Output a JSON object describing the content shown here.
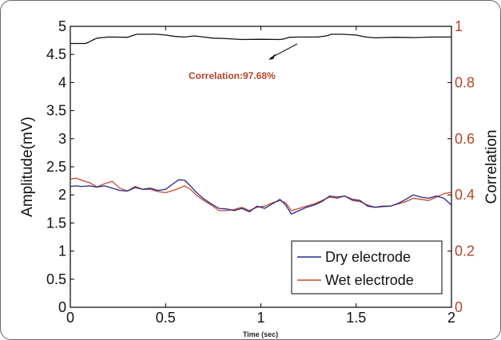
{
  "chart_data": {
    "type": "line",
    "title": "",
    "xlabel": "Time (sec)",
    "ylabel": "Amplitude(mV)",
    "y2label": "Correlation",
    "xlim": [
      0,
      2
    ],
    "ylim": [
      0,
      5
    ],
    "y2lim": [
      0,
      1
    ],
    "xticks": [
      "0",
      "0.5",
      "1",
      "1.5",
      "2"
    ],
    "yticks": [
      "0",
      "0.5",
      "1",
      "1.5",
      "2",
      "2.5",
      "3",
      "3.5",
      "4",
      "4.5",
      "5"
    ],
    "y2ticks": [
      "0",
      "0.2",
      "0.4",
      "0.6",
      "0.8",
      "1"
    ],
    "grid": false,
    "legend_position": "bottom-right",
    "annotation": "Correlation:97.68%",
    "colors": {
      "dry": "#1f2a8a",
      "wet": "#c8462a",
      "correlation": "#111111",
      "right_axis": "#b5452a"
    },
    "series": [
      {
        "name": "Dry electrode",
        "axis": "left",
        "x": [
          0,
          0.03,
          0.06,
          0.1,
          0.14,
          0.18,
          0.22,
          0.26,
          0.3,
          0.34,
          0.38,
          0.42,
          0.46,
          0.5,
          0.54,
          0.57,
          0.6,
          0.63,
          0.66,
          0.7,
          0.74,
          0.78,
          0.82,
          0.86,
          0.9,
          0.94,
          0.98,
          1.02,
          1.06,
          1.1,
          1.13,
          1.16,
          1.2,
          1.24,
          1.28,
          1.32,
          1.36,
          1.4,
          1.44,
          1.48,
          1.52,
          1.56,
          1.6,
          1.64,
          1.68,
          1.72,
          1.76,
          1.8,
          1.84,
          1.88,
          1.92,
          1.96,
          2
        ],
        "y": [
          2.15,
          2.16,
          2.15,
          2.16,
          2.14,
          2.16,
          2.12,
          2.08,
          2.07,
          2.13,
          2.1,
          2.12,
          2.08,
          2.1,
          2.2,
          2.27,
          2.26,
          2.16,
          2.05,
          1.93,
          1.84,
          1.76,
          1.75,
          1.72,
          1.76,
          1.7,
          1.8,
          1.76,
          1.84,
          1.92,
          1.82,
          1.66,
          1.72,
          1.78,
          1.82,
          1.88,
          1.98,
          1.96,
          1.98,
          1.92,
          1.9,
          1.8,
          1.78,
          1.8,
          1.8,
          1.85,
          1.92,
          2.0,
          1.96,
          1.94,
          1.98,
          1.94,
          1.82
        ]
      },
      {
        "name": "Wet electrode",
        "axis": "left",
        "x": [
          0,
          0.03,
          0.06,
          0.1,
          0.14,
          0.18,
          0.22,
          0.26,
          0.3,
          0.34,
          0.38,
          0.42,
          0.46,
          0.5,
          0.54,
          0.57,
          0.6,
          0.63,
          0.66,
          0.7,
          0.74,
          0.78,
          0.82,
          0.86,
          0.9,
          0.94,
          0.98,
          1.02,
          1.06,
          1.1,
          1.13,
          1.16,
          1.2,
          1.24,
          1.28,
          1.32,
          1.36,
          1.4,
          1.44,
          1.48,
          1.52,
          1.56,
          1.6,
          1.64,
          1.68,
          1.72,
          1.76,
          1.8,
          1.84,
          1.88,
          1.92,
          1.96,
          2
        ],
        "y": [
          2.28,
          2.3,
          2.26,
          2.22,
          2.14,
          2.2,
          2.24,
          2.12,
          2.07,
          2.15,
          2.1,
          2.1,
          2.06,
          2.04,
          2.08,
          2.12,
          2.16,
          2.1,
          2.0,
          1.9,
          1.82,
          1.72,
          1.72,
          1.74,
          1.78,
          1.72,
          1.78,
          1.8,
          1.86,
          1.9,
          1.86,
          1.72,
          1.76,
          1.8,
          1.84,
          1.9,
          1.96,
          1.94,
          1.98,
          1.9,
          1.88,
          1.82,
          1.78,
          1.79,
          1.8,
          1.84,
          1.88,
          1.94,
          1.92,
          1.9,
          1.96,
          2.02,
          2.05
        ]
      },
      {
        "name": "",
        "axis": "right",
        "x": [
          0,
          0.08,
          0.1,
          0.12,
          0.14,
          0.2,
          0.3,
          0.33,
          0.35,
          0.45,
          0.5,
          0.55,
          0.6,
          0.65,
          0.7,
          0.75,
          0.8,
          0.9,
          1.0,
          1.1,
          1.12,
          1.15,
          1.2,
          1.3,
          1.35,
          1.37,
          1.42,
          1.5,
          1.55,
          1.6,
          1.7,
          1.8,
          1.9,
          2.0
        ],
        "y": [
          0.939,
          0.939,
          0.945,
          0.952,
          0.958,
          0.962,
          0.961,
          0.968,
          0.972,
          0.972,
          0.969,
          0.964,
          0.962,
          0.966,
          0.962,
          0.958,
          0.957,
          0.953,
          0.954,
          0.953,
          0.955,
          0.961,
          0.962,
          0.962,
          0.967,
          0.972,
          0.972,
          0.969,
          0.962,
          0.959,
          0.961,
          0.96,
          0.962,
          0.962
        ]
      }
    ]
  }
}
